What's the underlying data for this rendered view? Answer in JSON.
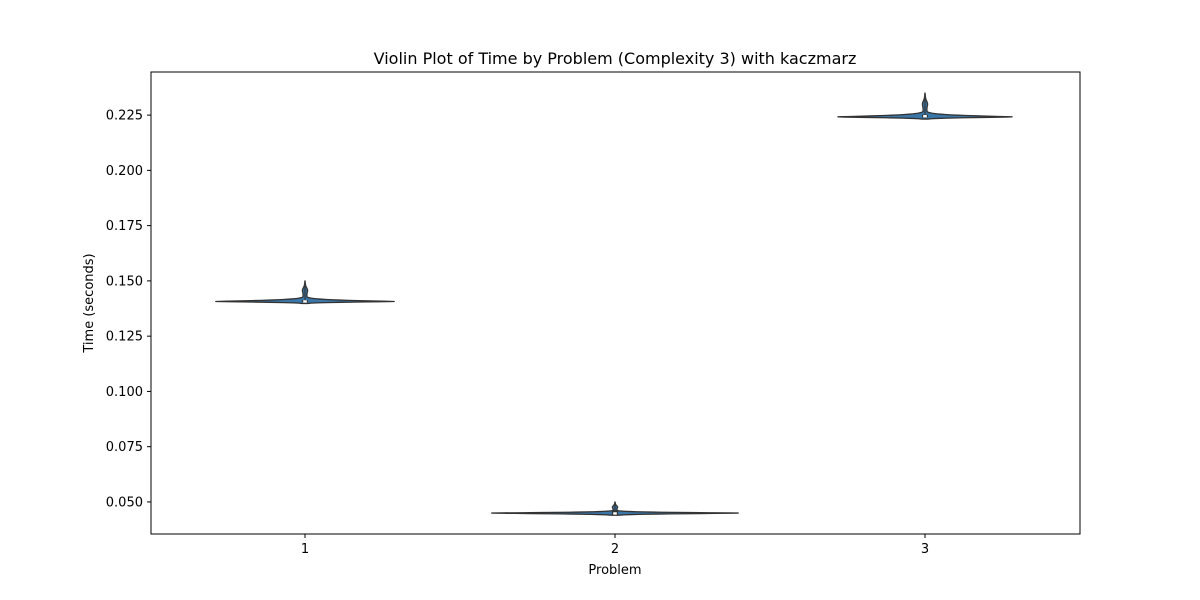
{
  "chart_data": {
    "type": "violin",
    "title": "Violin Plot of Time by Problem (Complexity 3) with kaczmarz",
    "xlabel": "Problem",
    "ylabel": "Time (seconds)",
    "categories": [
      "1",
      "2",
      "3"
    ],
    "ylim": [
      0.0355,
      0.2445
    ],
    "yticks": [
      0.05,
      0.075,
      0.1,
      0.125,
      0.15,
      0.175,
      0.2,
      0.225
    ],
    "ytick_labels": [
      "0.050",
      "0.075",
      "0.100",
      "0.125",
      "0.150",
      "0.175",
      "0.200",
      "0.225"
    ],
    "grid": false,
    "colors": {
      "fill": "#3a76a8",
      "edge": "#333333",
      "median": "#ffffff"
    },
    "violins": [
      {
        "category": "1",
        "min": 0.1398,
        "q1": 0.1404,
        "median": 0.1407,
        "q3": 0.1413,
        "max": 0.15,
        "mode": 0.1407
      },
      {
        "category": "2",
        "min": 0.044,
        "q1": 0.0442,
        "median": 0.0448,
        "q3": 0.0462,
        "max": 0.05,
        "mode": 0.045
      },
      {
        "category": "3",
        "min": 0.2232,
        "q1": 0.224,
        "median": 0.2245,
        "q3": 0.2252,
        "max": 0.235,
        "mode": 0.2242
      }
    ]
  }
}
